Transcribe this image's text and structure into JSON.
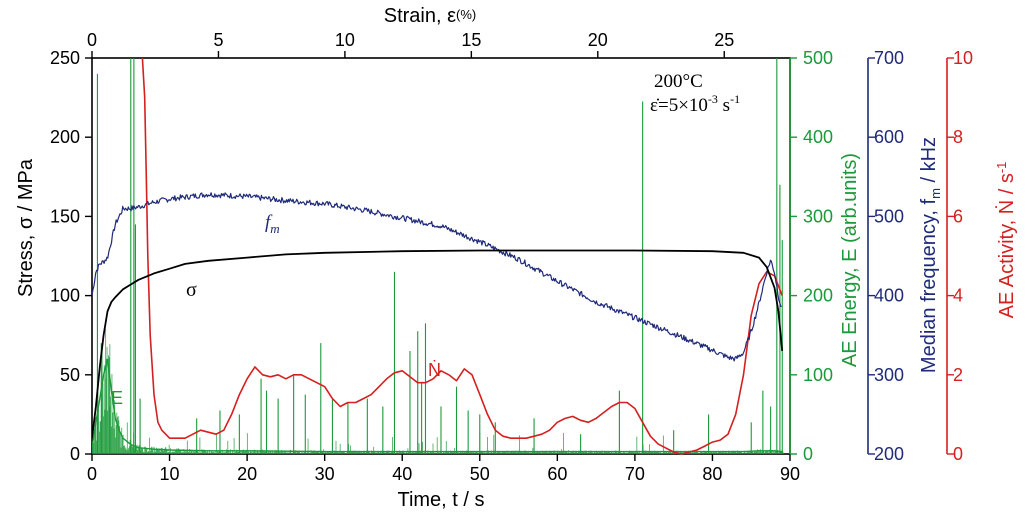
{
  "chart_data": {
    "type": "line",
    "colors": {
      "stress": "#000000",
      "frequency": "#1f2a7a",
      "energy": "#1a9a3a",
      "activity": "#d42020"
    },
    "x_axis": {
      "label": "Time, t / s",
      "range": [
        0,
        90
      ],
      "ticks": [
        "0",
        "10",
        "20",
        "30",
        "40",
        "50",
        "60",
        "70",
        "80",
        "90"
      ]
    },
    "top_axis": {
      "label_main": "Strain, ε",
      "label_unit": "(%)",
      "range_note": "strain 0 to 27.6 %",
      "ticks": [
        "0",
        "5",
        "10",
        "15",
        "20",
        "25"
      ],
      "tick_values": [
        0,
        5,
        10,
        15,
        20,
        25
      ]
    },
    "y_left": {
      "label": "Stress, σ / MPa",
      "range": [
        0,
        250
      ],
      "ticks": [
        "0",
        "50",
        "100",
        "150",
        "200",
        "250"
      ]
    },
    "y_energy": {
      "label": "AE Energy, E (arb.units)",
      "range": [
        0,
        500
      ],
      "ticks": [
        "0",
        "100",
        "200",
        "300",
        "400",
        "500"
      ]
    },
    "y_freq": {
      "label_main": "Median frequency, f",
      "label_sub": "m",
      "label_unit": " / kHz",
      "range": [
        200,
        700
      ],
      "ticks": [
        "200",
        "300",
        "400",
        "500",
        "600",
        "700"
      ]
    },
    "y_act": {
      "label_main": "AE Activity, Ṅ / s",
      "label_sup": "-1",
      "range": [
        0,
        10
      ],
      "ticks": [
        "0",
        "2",
        "4",
        "6",
        "8",
        "10"
      ]
    },
    "annotations": {
      "temp": "200°C",
      "rate_main": "ε̇=5×10",
      "rate_exp": "-3",
      "rate_unit": " s",
      "rate_unit_exp": "-1"
    },
    "series_labels": {
      "stress": "σ",
      "freq_main": "f",
      "freq_sub": "m",
      "energy": "E",
      "activity": "Ṅ"
    },
    "series": [
      {
        "name": "σ",
        "axis": "stress",
        "x": [
          0,
          0.5,
          1,
          1.5,
          2,
          2.5,
          3,
          4,
          5,
          6,
          8,
          10,
          12,
          15,
          20,
          25,
          30,
          40,
          50,
          60,
          70,
          80,
          84,
          86,
          87,
          88,
          88.5,
          89
        ],
        "y": [
          10,
          30,
          55,
          75,
          90,
          96,
          99,
          104,
          107,
          110,
          114,
          117,
          120,
          122,
          124,
          126,
          127,
          128,
          128.5,
          128.5,
          128.5,
          128,
          127,
          124,
          118,
          105,
          90,
          65
        ]
      },
      {
        "name": "f_m",
        "axis": "frequency",
        "x": [
          0,
          0.5,
          1,
          1.5,
          2,
          3,
          4,
          5,
          6,
          8,
          10,
          15,
          20,
          25,
          30,
          35,
          40,
          45,
          50,
          55,
          60,
          65,
          70,
          75,
          80,
          82,
          83,
          84,
          85,
          86,
          87,
          87.5,
          88,
          88.5,
          89
        ],
        "y": [
          400,
          430,
          440,
          443,
          448,
          490,
          510,
          510,
          512,
          518,
          522,
          528,
          525,
          520,
          516,
          508,
          498,
          488,
          468,
          446,
          418,
          392,
          372,
          352,
          331,
          322,
          320,
          328,
          355,
          390,
          430,
          445,
          430,
          400,
          380
        ]
      },
      {
        "name": "Ṅ",
        "axis": "activity",
        "x": [
          6.5,
          6.8,
          7,
          7.2,
          7.5,
          8,
          8.5,
          9,
          9.5,
          10,
          11,
          12,
          13,
          14,
          15,
          16,
          17,
          18,
          19,
          20,
          21,
          22,
          23,
          24,
          25,
          26,
          27,
          28,
          29,
          30,
          31,
          32,
          33,
          34,
          35,
          36,
          37,
          38,
          39,
          40,
          41,
          42,
          43,
          44,
          45,
          46,
          47,
          48,
          49,
          50,
          51,
          52,
          53,
          54,
          55,
          56,
          57,
          58,
          59,
          60,
          61,
          62,
          63,
          64,
          65,
          66,
          67,
          68,
          69,
          70,
          71,
          72,
          73,
          74,
          75,
          76,
          77,
          78,
          79,
          80,
          81,
          82,
          83,
          84,
          85,
          86,
          87,
          88,
          89
        ],
        "y": [
          10,
          9,
          7,
          5,
          3,
          1.5,
          0.8,
          0.6,
          0.5,
          0.4,
          0.4,
          0.4,
          0.5,
          0.6,
          0.55,
          0.5,
          0.6,
          1.0,
          1.5,
          1.9,
          2.2,
          2.0,
          1.95,
          2.0,
          1.9,
          2.0,
          2.0,
          1.9,
          1.8,
          1.7,
          1.4,
          1.2,
          1.3,
          1.3,
          1.4,
          1.5,
          1.7,
          1.9,
          2.05,
          2.1,
          1.95,
          1.8,
          1.8,
          1.9,
          2.1,
          2.0,
          1.85,
          2.15,
          2.0,
          1.5,
          1.0,
          0.6,
          0.45,
          0.4,
          0.4,
          0.4,
          0.45,
          0.5,
          0.6,
          0.8,
          0.9,
          0.95,
          0.85,
          0.8,
          0.9,
          1.05,
          1.2,
          1.3,
          1.3,
          1.15,
          0.8,
          0.45,
          0.25,
          0.15,
          0.05,
          0.0,
          0.05,
          0.1,
          0.2,
          0.3,
          0.35,
          0.5,
          1.0,
          2.0,
          3.5,
          4.3,
          4.6,
          4.5,
          4.0
        ]
      },
      {
        "name": "E",
        "axis": "energy",
        "type": "bar",
        "envelope": {
          "x": [
            0,
            0.5,
            1,
            1.5,
            2,
            2.5,
            3,
            3.5,
            4,
            5,
            6,
            8,
            10,
            15,
            20,
            30,
            40,
            50,
            60,
            70,
            80,
            84,
            86,
            88,
            89
          ],
          "y": [
            8,
            40,
            70,
            100,
            120,
            80,
            45,
            30,
            20,
            12,
            8,
            6,
            5,
            4,
            4,
            3,
            3,
            3,
            3,
            3,
            3,
            3,
            4,
            4,
            3
          ]
        },
        "spikes_x": [
          0.7,
          1.2,
          1.8,
          2.3,
          5,
          5.4,
          5.6,
          6.2,
          13.5,
          16.5,
          19,
          21.8,
          22.5,
          24,
          26,
          27.5,
          29.5,
          31,
          33,
          35.5,
          37.5,
          39,
          41,
          42,
          42.5,
          43,
          45,
          47,
          48.5,
          50,
          52,
          57,
          63,
          68,
          71,
          75,
          79.5,
          85,
          86.5,
          87.5,
          88.3,
          88.7,
          89
        ],
        "spikes_y": [
          480,
          140,
          95,
          60,
          500,
          500,
          290,
          70,
          45,
          55,
          50,
          95,
          80,
          70,
          100,
          75,
          140,
          70,
          65,
          70,
          60,
          230,
          130,
          155,
          90,
          165,
          60,
          85,
          55,
          50,
          40,
          45,
          25,
          80,
          445,
          30,
          50,
          40,
          80,
          60,
          500,
          340,
          270
        ]
      }
    ]
  }
}
